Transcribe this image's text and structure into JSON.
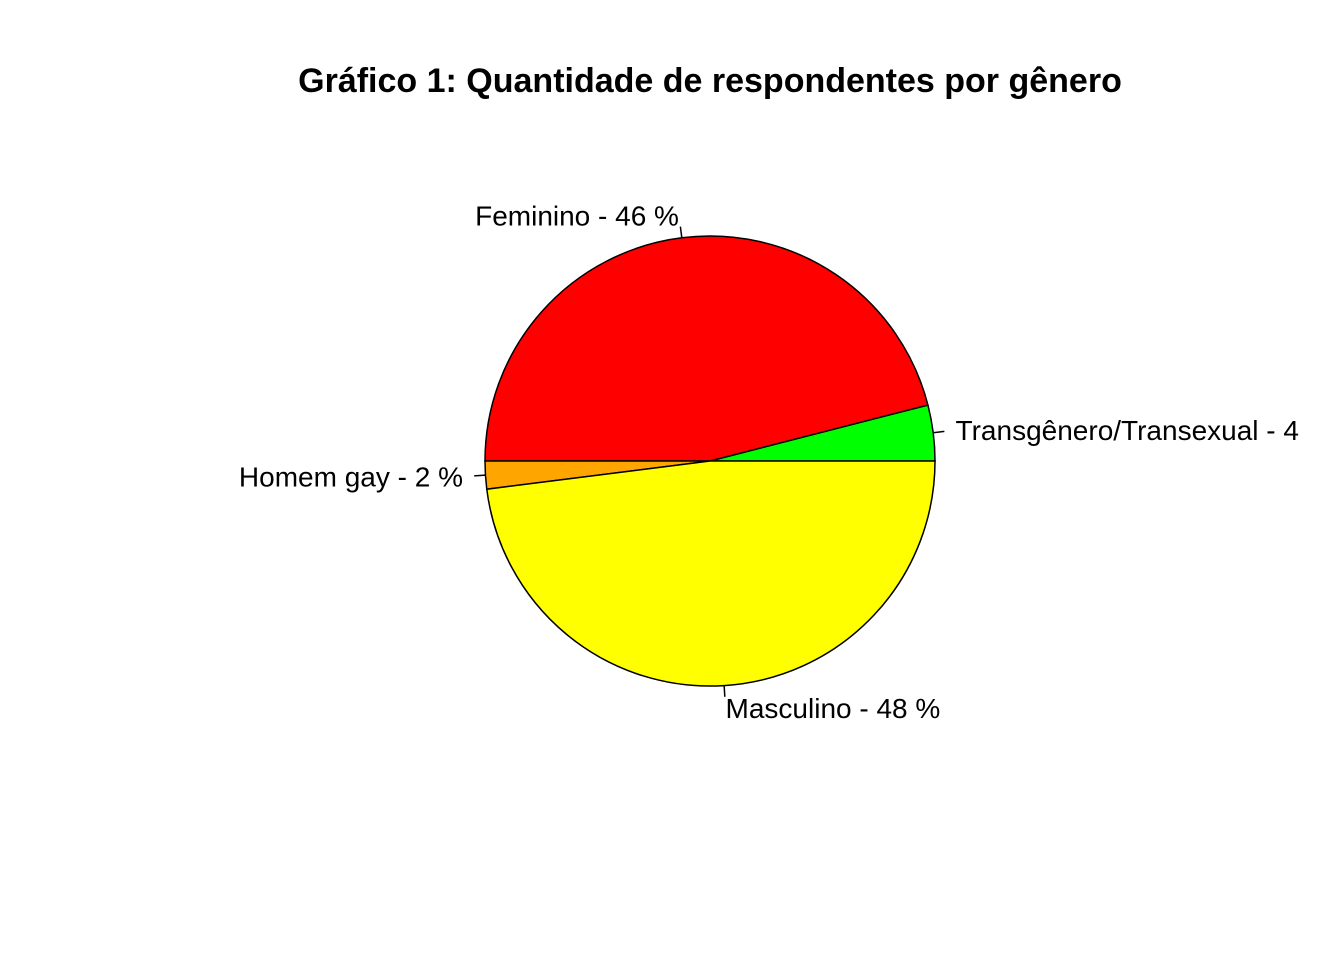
{
  "chart_data": {
    "type": "pie",
    "title": "Gráfico 1: Quantidade de respondentes por gênero",
    "slices": [
      {
        "label": "Transgênero/Transexual - 4",
        "value": 4,
        "color": "#00ff00"
      },
      {
        "label": "Feminino - 46 %",
        "value": 46,
        "color": "#ff0000"
      },
      {
        "label": "Homem gay - 2 %",
        "value": 2,
        "color": "#ffa500"
      },
      {
        "label": "Masculino - 48 %",
        "value": 48,
        "color": "#ffff00"
      }
    ],
    "start": "3 o'clock",
    "direction": "counterclockwise",
    "legend": "none"
  }
}
